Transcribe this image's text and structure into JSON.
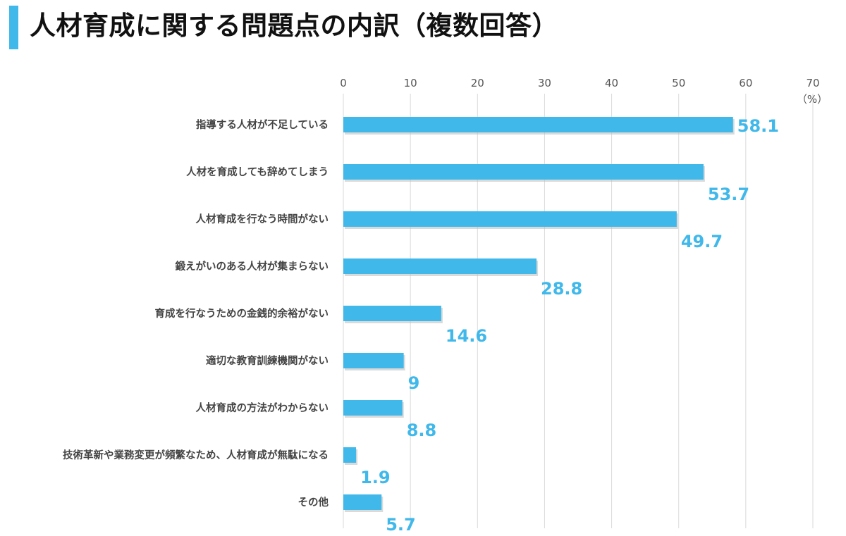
{
  "title": "人材育成に関する問題点の内訳（複数回答）",
  "colors": {
    "accent": "#40B8EA",
    "grid": "#D9D9D9",
    "text": "#444444"
  },
  "chart_data": {
    "type": "bar",
    "orientation": "horizontal",
    "categories": [
      "指導する人材が不足している",
      "人材を育成しても辞めてしまう",
      "人材育成を行なう時間がない",
      "鍛えがいのある人材が集まらない",
      "育成を行なうための金銭的余裕がない",
      "適切な教育訓練機関がない",
      "人材育成の方法がわからない",
      "技術革新や業務変更が頻繁なため、人材育成が無駄になる",
      "その他"
    ],
    "values": [
      58.1,
      53.7,
      49.7,
      28.8,
      14.6,
      9,
      8.8,
      1.9,
      5.7
    ],
    "value_labels": [
      "58.1",
      "53.7",
      "49.7",
      "28.8",
      "14.6",
      "9",
      "8.8",
      "1.9",
      "5.7"
    ],
    "xlim": [
      0,
      70
    ],
    "xticks": [
      0,
      10,
      20,
      30,
      40,
      50,
      60,
      70
    ],
    "unit": "（%）",
    "grid": true,
    "x_axis_position": "top"
  }
}
